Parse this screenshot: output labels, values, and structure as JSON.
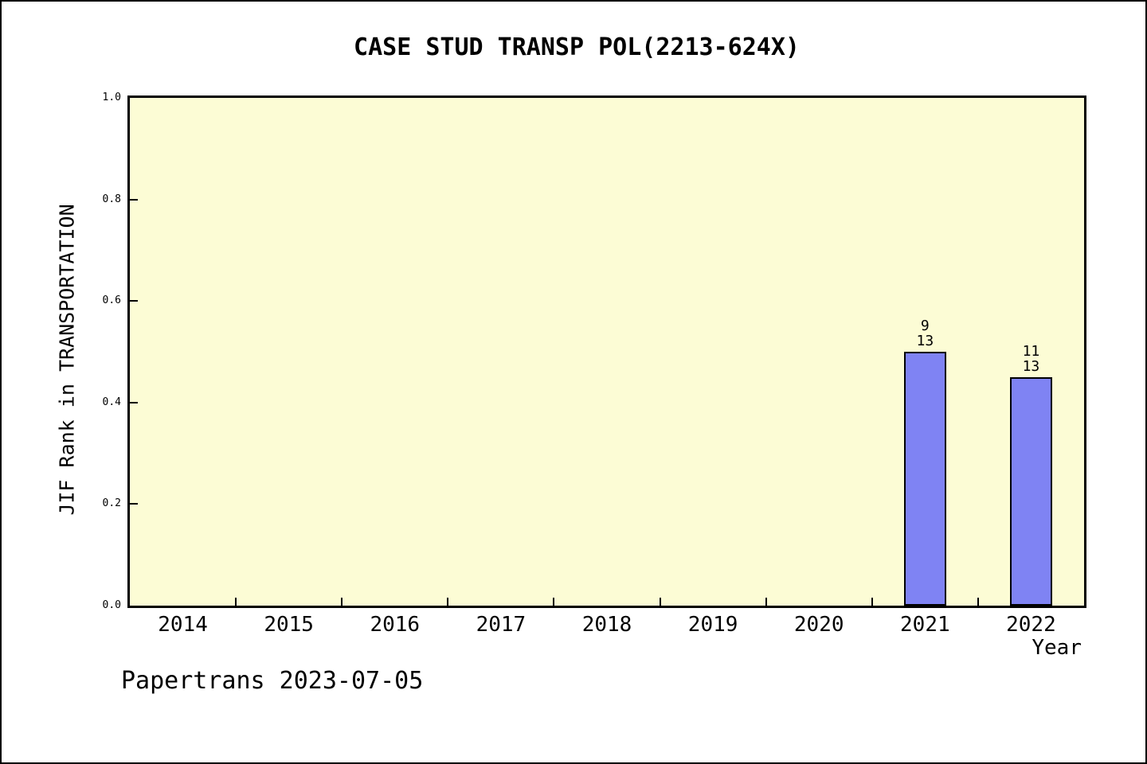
{
  "page": {
    "background_color": "#ffffff",
    "frame_border_color": "#000000",
    "footer": "Papertrans 2023-07-05"
  },
  "chart_data": {
    "type": "bar",
    "title": "CASE STUD TRANSP POL(2213-624X)",
    "xlabel": "Year",
    "ylabel": "JIF Rank in TRANSPORTATION",
    "categories": [
      "2014",
      "2015",
      "2016",
      "2017",
      "2018",
      "2019",
      "2020",
      "2021",
      "2022"
    ],
    "values": [
      null,
      null,
      null,
      null,
      null,
      null,
      null,
      0.5,
      0.45
    ],
    "bar_annotations": [
      null,
      null,
      null,
      null,
      null,
      null,
      null,
      "9\n13",
      "11\n13"
    ],
    "ylim": [
      0.0,
      1.0
    ],
    "ytick_labels": [
      "0.0",
      "0.2",
      "0.4",
      "0.6",
      "0.8",
      "1.0"
    ],
    "ytick_values": [
      0.0,
      0.2,
      0.4,
      0.6,
      0.8,
      1.0
    ],
    "grid": false,
    "legend": null,
    "plot_background_color": "#fcfcd5",
    "bar_fill_color": "#7f83f3",
    "bar_border_color": "#000000",
    "axis_color": "#000000"
  }
}
